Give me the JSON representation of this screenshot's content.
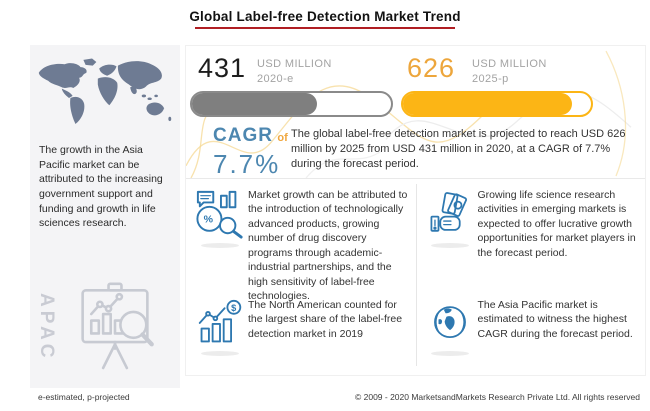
{
  "title": "Global Label-free Detection Market Trend",
  "chart_data": {
    "type": "bar",
    "orientation": "horizontal",
    "title": "Global Label-free Detection Market Trend",
    "categories": [
      "2020-e",
      "2025-p"
    ],
    "values": [
      431,
      626
    ],
    "unit": "USD MILLION",
    "cagr_pct": 7.7,
    "series_colors": [
      "#7f7f7f",
      "#fcb515"
    ]
  },
  "left_panel": {
    "map_icon": "world-map",
    "text": "The growth in the Asia Pacific market can be attributed to the increasing government support and funding and growth in life sciences research.",
    "region_label": "APAC",
    "icon": "presentation-analysis-icon"
  },
  "stats": {
    "current": {
      "value": "431",
      "unit": "USD MILLION",
      "year": "2020-e",
      "fill_pct": 63
    },
    "projected": {
      "value": "626",
      "unit": "USD MILLION",
      "year": "2025-p",
      "fill_pct": 90
    },
    "cagr": {
      "label": "CAGR",
      "of": "of",
      "value": "7.7%"
    },
    "summary": "The global label-free detection market is projected to reach USD 626 million by 2025 from USD 431 million in 2020, at a CAGR of 7.7% during the forecast period."
  },
  "quadrants": [
    {
      "icon": "market-analysis-icon",
      "text": "Market growth can be attributed to the introduction of technologically advanced products, growing number of drug discovery programs through academic-industrial partnerships, and the high sensitivity of label-free technologies."
    },
    {
      "icon": "money-hand-icon",
      "text": "Growing life science research activities in emerging markets is expected to offer lucrative growth opportunities for market players in the forecast period."
    },
    {
      "icon": "growth-chart-dollar-icon",
      "text": "The North American counted for the largest share of the label-free detection market in 2019"
    },
    {
      "icon": "globe-icon",
      "text": "The Asia Pacific market is estimated to witness the highest CAGR during the forecast period."
    }
  ],
  "footer": {
    "note": "e-estimated, p-projected",
    "copyright": "© 2009 - 2020 MarketsandMarkets Research Private Ltd. All rights reserved"
  },
  "colors": {
    "accent_gold": "#fcb515",
    "gold_number": "#eda63c",
    "bar_gray": "#7f7f7f",
    "cagr_blue": "#4d87b0",
    "icon_blue": "#2e78b0",
    "map_slate": "#6e7b93",
    "title_underline_red": "#b01e23",
    "panel_gray": "#f4f4f6"
  }
}
